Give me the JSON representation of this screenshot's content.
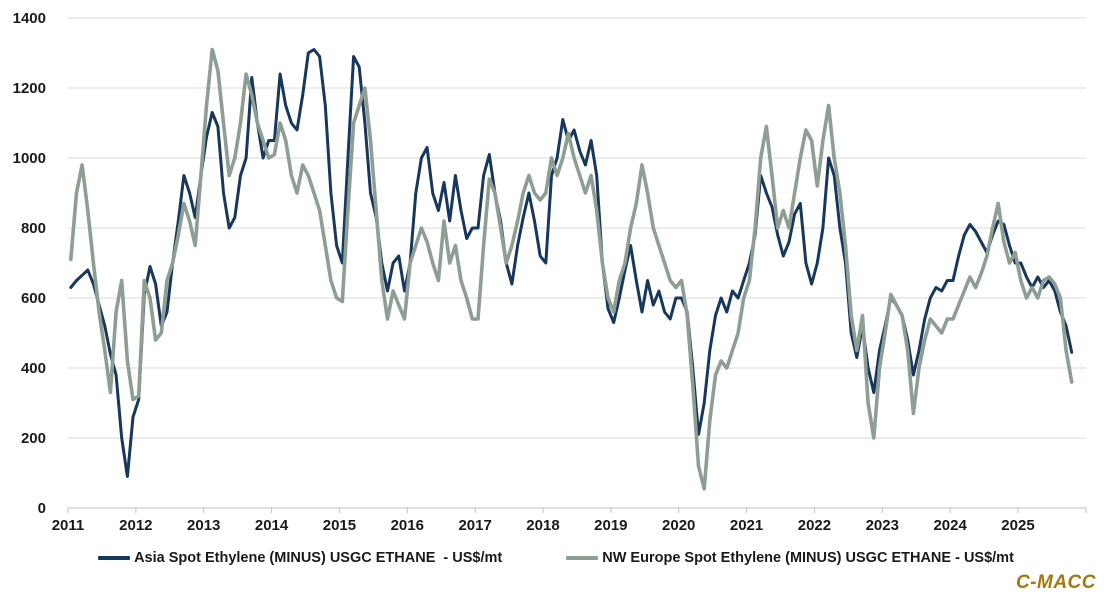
{
  "chart_data": {
    "type": "line",
    "title": "",
    "x_tick_years": [
      2011,
      2012,
      2013,
      2014,
      2015,
      2016,
      2017,
      2018,
      2019,
      2020,
      2021,
      2022,
      2023,
      2024,
      2025
    ],
    "x_monthly_start": "2011-01",
    "x_monthly_end": "2025-10",
    "ylim": [
      0,
      1400
    ],
    "y_ticks": [
      0,
      200,
      400,
      600,
      800,
      1000,
      1200,
      1400
    ],
    "grid": "horizontal",
    "grid_color": "#d9d9d9",
    "axis_color": "#bfbfbf",
    "tick_label_color": "#1a1a1a",
    "legend_position": "bottom",
    "series": [
      {
        "name": "Asia Spot Ethylene (MINUS) USGC ETHANE  - US$/mt",
        "color": "#17375D",
        "monthly_values": [
          630,
          650,
          665,
          680,
          640,
          580,
          520,
          440,
          380,
          200,
          90,
          260,
          310,
          610,
          690,
          640,
          520,
          560,
          700,
          820,
          950,
          900,
          830,
          950,
          1060,
          1130,
          1090,
          900,
          800,
          830,
          950,
          1000,
          1230,
          1100,
          1000,
          1050,
          1050,
          1240,
          1150,
          1100,
          1080,
          1180,
          1300,
          1310,
          1290,
          1150,
          900,
          750,
          700,
          1000,
          1290,
          1260,
          1100,
          900,
          830,
          700,
          620,
          700,
          720,
          620,
          700,
          900,
          1000,
          1030,
          900,
          850,
          930,
          820,
          950,
          850,
          770,
          800,
          800,
          950,
          1010,
          900,
          820,
          700,
          640,
          750,
          830,
          900,
          820,
          720,
          700,
          950,
          1000,
          1110,
          1050,
          1080,
          1020,
          980,
          1050,
          950,
          700,
          570,
          530,
          600,
          680,
          750,
          650,
          560,
          650,
          580,
          620,
          560,
          540,
          600,
          600,
          560,
          400,
          210,
          300,
          450,
          550,
          600,
          560,
          620,
          600,
          650,
          700,
          780,
          950,
          900,
          860,
          780,
          720,
          760,
          840,
          870,
          700,
          640,
          700,
          800,
          1000,
          950,
          800,
          700,
          500,
          430,
          520,
          400,
          330,
          450,
          520,
          600,
          580,
          550,
          480,
          380,
          450,
          540,
          600,
          630,
          620,
          650,
          650,
          720,
          780,
          810,
          790,
          760,
          730,
          780,
          820,
          810,
          750,
          700,
          700,
          660,
          630,
          660,
          630,
          650,
          620,
          560,
          520,
          445
        ]
      },
      {
        "name": "NW Europe Spot Ethylene (MINUS) USGC ETHANE - US$/mt",
        "color": "#8E9E93",
        "monthly_values": [
          710,
          900,
          980,
          850,
          700,
          560,
          450,
          330,
          560,
          650,
          420,
          310,
          320,
          650,
          600,
          480,
          500,
          650,
          700,
          780,
          870,
          820,
          750,
          950,
          1150,
          1310,
          1250,
          1100,
          950,
          1000,
          1100,
          1240,
          1180,
          1100,
          1050,
          1000,
          1010,
          1100,
          1050,
          950,
          900,
          980,
          950,
          900,
          850,
          750,
          650,
          600,
          590,
          850,
          1100,
          1150,
          1200,
          1050,
          850,
          650,
          540,
          620,
          580,
          540,
          700,
          750,
          800,
          760,
          700,
          650,
          820,
          700,
          750,
          650,
          600,
          540,
          540,
          750,
          940,
          900,
          800,
          700,
          750,
          820,
          900,
          950,
          900,
          880,
          900,
          1000,
          950,
          1000,
          1070,
          1000,
          950,
          900,
          950,
          850,
          700,
          600,
          560,
          650,
          700,
          800,
          870,
          980,
          900,
          800,
          750,
          700,
          650,
          630,
          650,
          550,
          350,
          120,
          55,
          250,
          380,
          420,
          400,
          450,
          500,
          600,
          650,
          800,
          1000,
          1090,
          950,
          800,
          850,
          800,
          900,
          1000,
          1080,
          1050,
          920,
          1050,
          1150,
          1000,
          900,
          750,
          550,
          450,
          550,
          300,
          200,
          400,
          500,
          610,
          580,
          550,
          450,
          270,
          400,
          480,
          540,
          520,
          500,
          540,
          540,
          580,
          620,
          660,
          630,
          670,
          720,
          800,
          870,
          760,
          700,
          730,
          650,
          600,
          630,
          600,
          650,
          660,
          640,
          600,
          450,
          360
        ]
      }
    ]
  },
  "branding": {
    "logo_text": "C-MACC",
    "logo_color": "#A5790E"
  }
}
